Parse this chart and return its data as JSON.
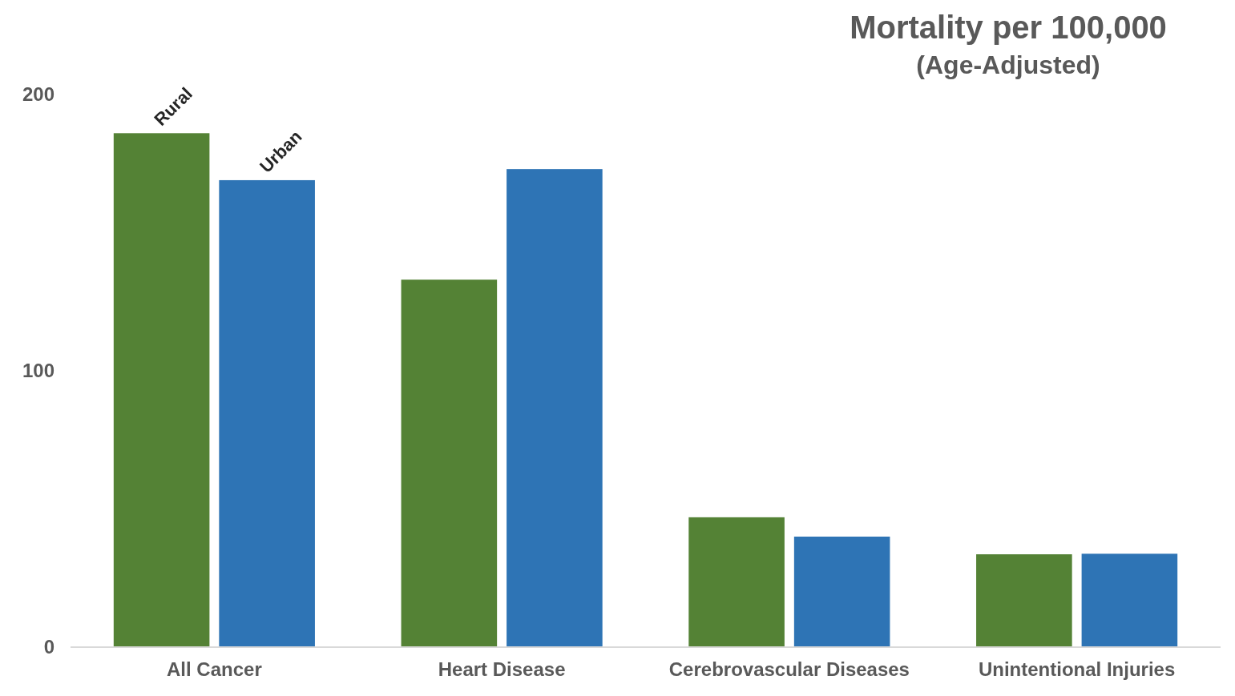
{
  "chart_data": {
    "type": "bar",
    "title": "Mortality per 100,000",
    "subtitle": "(Age-Adjusted)",
    "categories": [
      "All Cancer",
      "Heart Disease",
      "Cerebrovascular Diseases",
      "Unintentional Injuries"
    ],
    "series": [
      {
        "name": "Rural",
        "color": "#548235",
        "values": [
          186,
          133,
          47,
          33.6
        ]
      },
      {
        "name": "Urban",
        "color": "#2e74b5",
        "values": [
          169,
          173,
          40,
          33.8
        ]
      }
    ],
    "ylim": [
      0,
      200
    ],
    "yticks": [
      0,
      100,
      200
    ],
    "grid": false,
    "legend": false
  }
}
